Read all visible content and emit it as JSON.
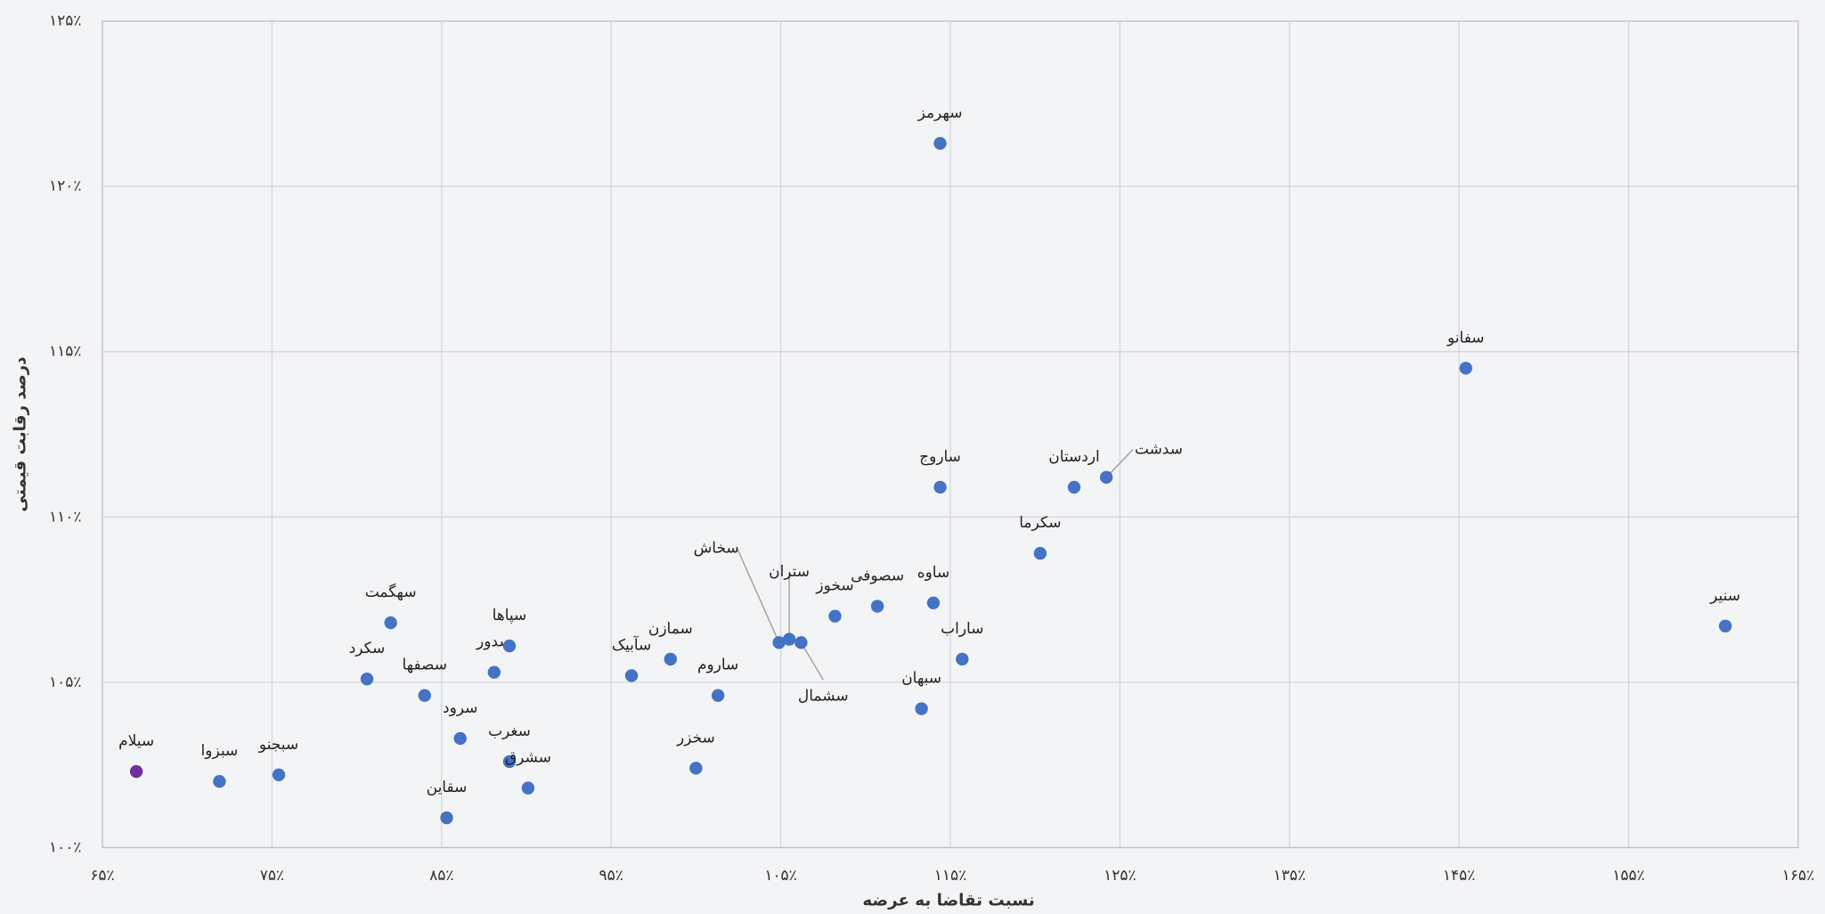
{
  "chart_data": {
    "type": "scatter",
    "x_label": "نسبت تقاضا به عرضه",
    "y_label": "درصد رقابت قیمتی",
    "xlim": [
      65,
      165
    ],
    "ylim": [
      100,
      125
    ],
    "xticks": [
      {
        "value": 65,
        "label": "۶۵٪"
      },
      {
        "value": 75,
        "label": "۷۵٪"
      },
      {
        "value": 85,
        "label": "۸۵٪"
      },
      {
        "value": 95,
        "label": "۹۵٪"
      },
      {
        "value": 105,
        "label": "۱۰۵٪"
      },
      {
        "value": 115,
        "label": "۱۱۵٪"
      },
      {
        "value": 125,
        "label": "۱۲۵٪"
      },
      {
        "value": 135,
        "label": "۱۳۵٪"
      },
      {
        "value": 145,
        "label": "۱۴۵٪"
      },
      {
        "value": 155,
        "label": "۱۵۵٪"
      },
      {
        "value": 165,
        "label": "۱۶۵٪"
      }
    ],
    "yticks": [
      {
        "value": 100,
        "label": "۱۰۰٪"
      },
      {
        "value": 105,
        "label": "۱۰۵٪"
      },
      {
        "value": 110,
        "label": "۱۱۰٪"
      },
      {
        "value": 115,
        "label": "۱۱۵٪"
      },
      {
        "value": 120,
        "label": "۱۲۰٪"
      },
      {
        "value": 125,
        "label": "۱۲۵٪"
      }
    ],
    "grid": true,
    "labels": [
      "سیلام",
      "سبزوا",
      "سبجنو",
      "سکرد",
      "سهگمت",
      "سصفها",
      "سقاین",
      "سرود",
      "سدور",
      "سپاها",
      "سغرب",
      "سشرق",
      "سآبیک",
      "سمازن",
      "ساروم",
      "سخزر",
      "سخاش",
      "ستران",
      "سشمال",
      "سخوز",
      "سصوفی",
      "ساوه",
      "سبهان",
      "ساراب",
      "ساروج",
      "سهرمز",
      "سکرما",
      "اردستان",
      "سدشت",
      "سفانو",
      "سنیر"
    ],
    "x": [
      67.0,
      71.9,
      75.4,
      80.6,
      82.0,
      84.0,
      85.3,
      86.1,
      88.1,
      89.0,
      89.0,
      90.1,
      96.2,
      98.5,
      101.3,
      100.0,
      104.9,
      105.5,
      106.2,
      108.2,
      110.7,
      114.0,
      113.3,
      115.7,
      114.4,
      114.4,
      120.3,
      122.3,
      124.2,
      145.4,
      160.7
    ],
    "y": [
      102.3,
      102.0,
      102.2,
      105.1,
      106.8,
      104.6,
      100.9,
      103.3,
      105.3,
      106.1,
      102.6,
      101.8,
      105.2,
      105.7,
      104.6,
      102.4,
      106.2,
      106.3,
      106.2,
      107.0,
      107.3,
      107.4,
      104.2,
      105.7,
      110.9,
      121.3,
      108.9,
      110.9,
      111.2,
      114.5,
      106.7
    ],
    "colors": [
      "#7030a0",
      "#4472c4",
      "#4472c4",
      "#4472c4",
      "#4472c4",
      "#4472c4",
      "#4472c4",
      "#4472c4",
      "#4472c4",
      "#4472c4",
      "#4472c4",
      "#4472c4",
      "#4472c4",
      "#4472c4",
      "#4472c4",
      "#4472c4",
      "#4472c4",
      "#4472c4",
      "#4472c4",
      "#4472c4",
      "#4472c4",
      "#4472c4",
      "#4472c4",
      "#4472c4",
      "#4472c4",
      "#4472c4",
      "#4472c4",
      "#4472c4",
      "#4472c4",
      "#4472c4",
      "#4472c4"
    ]
  }
}
